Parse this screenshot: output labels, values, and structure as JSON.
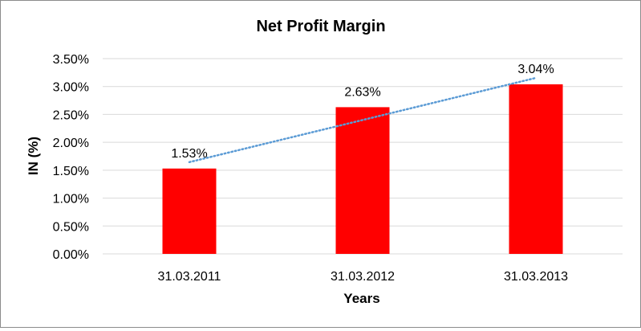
{
  "chart_data": {
    "type": "bar",
    "title": "Net Profit Margin",
    "xlabel": "Years",
    "ylabel": "IN (%)",
    "categories": [
      "31.03.2011",
      "31.03.2012",
      "31.03.2013"
    ],
    "values": [
      1.53,
      2.63,
      3.04
    ],
    "data_labels": [
      "1.53%",
      "2.63%",
      "3.04%"
    ],
    "ylim": [
      0,
      3.5
    ],
    "yticks": [
      0,
      0.5,
      1.0,
      1.5,
      2.0,
      2.5,
      3.0,
      3.5
    ],
    "ytick_labels": [
      "0.00%",
      "0.50%",
      "1.00%",
      "1.50%",
      "2.00%",
      "2.50%",
      "3.00%",
      "3.50%"
    ],
    "grid": true,
    "trendline": "linear, dotted",
    "colors": {
      "bar": "#ff0000",
      "trendline": "#5b9bd5",
      "grid": "#d9d9d9"
    }
  }
}
